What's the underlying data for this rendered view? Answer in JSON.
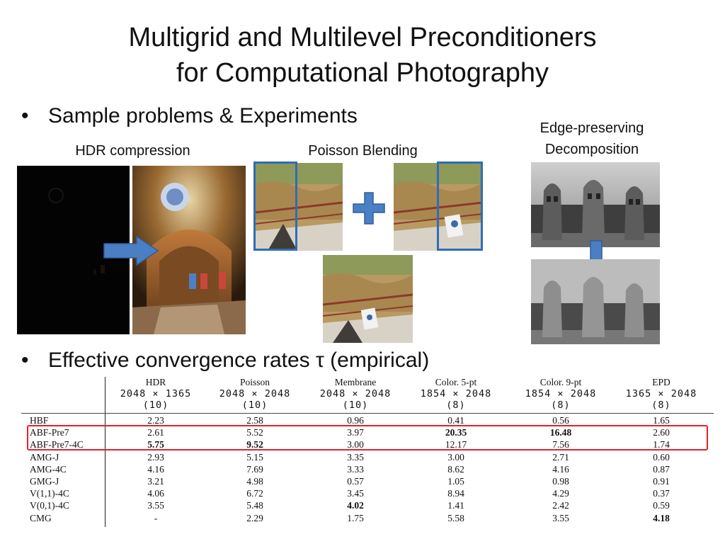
{
  "slide": {
    "title_line1": "Multigrid and Multilevel Preconditioners",
    "title_line2": "for Computational Photography",
    "bullet1": "Sample problems & Experiments",
    "bullet2": "Effective convergence rates τ (empirical)",
    "bullet_marker": "•"
  },
  "captions": {
    "hdr": "HDR compression",
    "poisson": "Poisson Blending",
    "epd_line1": "Edge-preserving",
    "epd_line2": "Decomposition"
  },
  "colors": {
    "arrow_blue": "#4a7fc4",
    "frame_blue": "#2f6db5",
    "highlight_red": "#e0222a"
  },
  "table": {
    "columns": [
      {
        "name": "HDR",
        "dims": "2048 × 1365",
        "count": "(10)"
      },
      {
        "name": "Poisson",
        "dims": "2048 × 2048",
        "count": "(10)"
      },
      {
        "name": "Membrane",
        "dims": "2048 × 2048",
        "count": "(10)"
      },
      {
        "name": "Color. 5-pt",
        "dims": "1854 × 2048",
        "count": "(8)"
      },
      {
        "name": "Color. 9-pt",
        "dims": "1854 × 2048",
        "count": "(8)"
      },
      {
        "name": "EPD",
        "dims": "1365 × 2048",
        "count": "(8)"
      }
    ],
    "rows": [
      {
        "label": "HBF",
        "values": [
          "2.23",
          "2.58",
          "0.96",
          "0.41",
          "0.56",
          "1.65"
        ],
        "bold": []
      },
      {
        "label": "ABF-Pre7",
        "values": [
          "2.61",
          "5.52",
          "3.97",
          "20.35",
          "16.48",
          "2.60"
        ],
        "bold": [
          3,
          4
        ]
      },
      {
        "label": "ABF-Pre7-4C",
        "values": [
          "5.75",
          "9.52",
          "3.00",
          "12.17",
          "7.56",
          "1.74"
        ],
        "bold": [
          0,
          1
        ]
      },
      {
        "label": "AMG-J",
        "values": [
          "2.93",
          "5.15",
          "3.35",
          "3.00",
          "2.71",
          "0.60"
        ],
        "bold": []
      },
      {
        "label": "AMG-4C",
        "values": [
          "4.16",
          "7.69",
          "3.33",
          "8.62",
          "4.16",
          "0.87"
        ],
        "bold": []
      },
      {
        "label": "GMG-J",
        "values": [
          "3.21",
          "4.98",
          "0.57",
          "1.05",
          "0.98",
          "0.91"
        ],
        "bold": []
      },
      {
        "label": "V(1,1)-4C",
        "values": [
          "4.06",
          "6.72",
          "3.45",
          "8.94",
          "4.29",
          "0.37"
        ],
        "bold": []
      },
      {
        "label": "V(0,1)-4C",
        "values": [
          "3.55",
          "5.48",
          "4.02",
          "1.41",
          "2.42",
          "0.59"
        ],
        "bold": [
          2
        ]
      },
      {
        "label": "CMG",
        "values": [
          "-",
          "2.29",
          "1.75",
          "5.58",
          "3.55",
          "4.18"
        ],
        "bold": [
          5
        ]
      }
    ]
  }
}
